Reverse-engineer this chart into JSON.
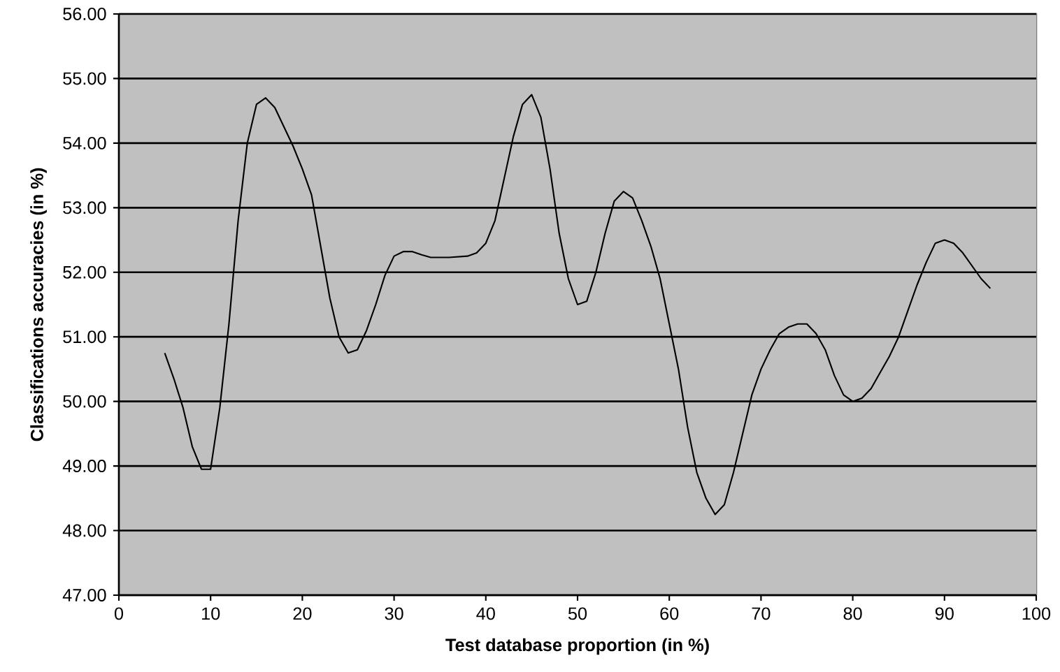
{
  "chart_data": {
    "type": "line",
    "xlabel": "Test database proportion (in %)",
    "ylabel": "Classifications accuracies (in %)",
    "x": [
      5,
      6,
      7,
      8,
      9,
      10,
      11,
      12,
      13,
      14,
      15,
      16,
      17,
      18,
      19,
      20,
      21,
      22,
      23,
      24,
      25,
      26,
      27,
      28,
      29,
      30,
      31,
      32,
      33,
      34,
      35,
      36,
      37,
      38,
      39,
      40,
      41,
      42,
      43,
      44,
      45,
      46,
      47,
      48,
      49,
      50,
      51,
      52,
      53,
      54,
      55,
      56,
      57,
      58,
      59,
      60,
      61,
      62,
      63,
      64,
      65,
      66,
      67,
      68,
      69,
      70,
      71,
      72,
      73,
      74,
      75,
      76,
      77,
      78,
      79,
      80,
      81,
      82,
      83,
      84,
      85,
      86,
      87,
      88,
      89,
      90,
      91,
      92,
      93,
      94,
      95
    ],
    "series": [
      {
        "color": "#000000",
        "values": [
          50.75,
          50.35,
          49.9,
          49.3,
          48.95,
          48.95,
          49.9,
          51.2,
          52.8,
          54.0,
          54.6,
          54.7,
          54.55,
          54.25,
          53.95,
          53.6,
          53.2,
          52.4,
          51.6,
          51.0,
          50.75,
          50.8,
          51.1,
          51.5,
          51.95,
          52.25,
          52.32,
          52.32,
          52.27,
          52.23,
          52.23,
          52.23,
          52.24,
          52.25,
          52.3,
          52.45,
          52.8,
          53.45,
          54.1,
          54.6,
          54.75,
          54.4,
          53.6,
          52.6,
          51.9,
          51.5,
          51.55,
          52.0,
          52.6,
          53.1,
          53.25,
          53.15,
          52.8,
          52.4,
          51.9,
          51.2,
          50.5,
          49.6,
          48.9,
          48.5,
          48.25,
          48.4,
          48.9,
          49.5,
          50.1,
          50.5,
          50.8,
          51.05,
          51.15,
          51.2,
          51.2,
          51.05,
          50.8,
          50.4,
          50.1,
          50.0,
          50.05,
          50.2,
          50.45,
          50.7,
          51.0,
          51.4,
          51.8,
          52.15,
          52.45,
          52.5,
          52.45,
          52.3,
          52.1,
          51.9,
          51.75
        ]
      }
    ],
    "xlim": [
      0,
      100
    ],
    "xticks": [
      0,
      10,
      20,
      30,
      40,
      50,
      60,
      70,
      80,
      90,
      100
    ],
    "ylim": [
      47,
      56
    ],
    "yticks": [
      {
        "value": 47,
        "label": "47.00"
      },
      {
        "value": 48,
        "label": "48.00"
      },
      {
        "value": 49,
        "label": "49.00"
      },
      {
        "value": 50,
        "label": "50.00"
      },
      {
        "value": 51,
        "label": "51.00"
      },
      {
        "value": 52,
        "label": "52.00"
      },
      {
        "value": 53,
        "label": "53.00"
      },
      {
        "value": 54,
        "label": "54.00"
      },
      {
        "value": 55,
        "label": "55.00"
      },
      {
        "value": 56,
        "label": "56.00"
      }
    ],
    "grid": "y"
  }
}
